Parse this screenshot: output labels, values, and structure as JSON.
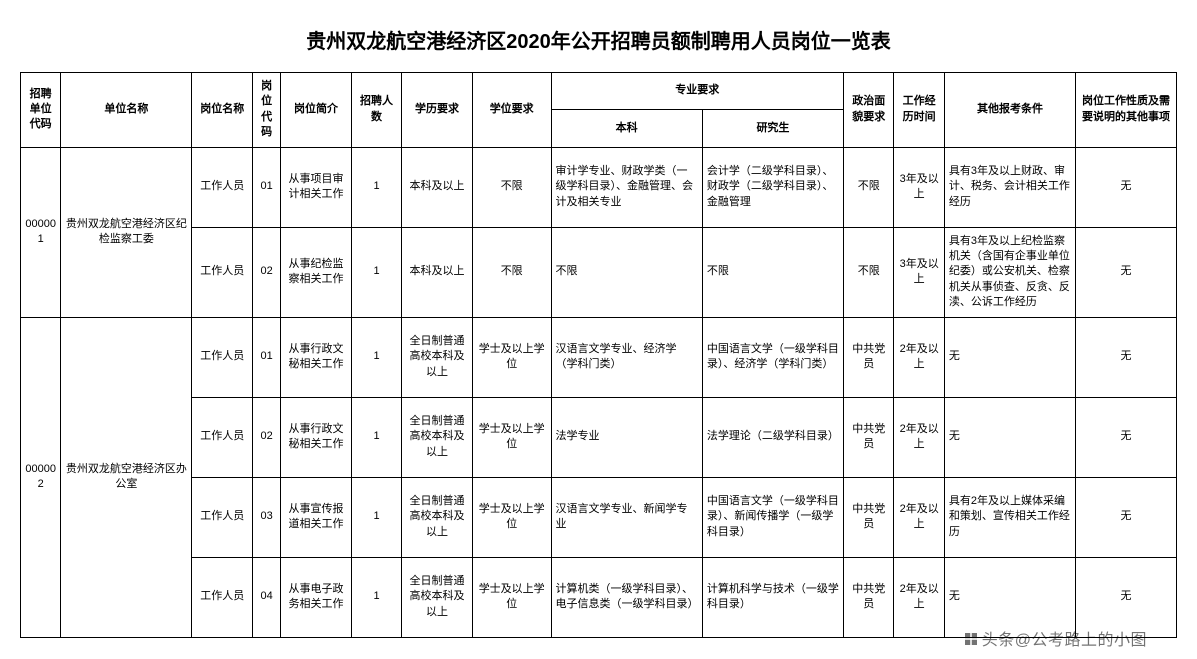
{
  "title": "贵州双龙航空港经济区2020年公开招聘员额制聘用人员岗位一览表",
  "columns": {
    "unit_code": "招聘单位代码",
    "unit_name": "单位名称",
    "post_name": "岗位名称",
    "post_code": "岗位代码",
    "post_desc": "岗位简介",
    "count": "招聘人数",
    "edu_req": "学历要求",
    "degree_req": "学位要求",
    "major_req": "专业要求",
    "major_bachelor": "本科",
    "major_master": "研究生",
    "political": "政治面貌要求",
    "work_exp": "工作经历时间",
    "other_req": "其他报考条件",
    "remark": "岗位工作性质及需要说明的其他事项"
  },
  "col_widths": {
    "unit_code": 40,
    "unit_name": 130,
    "post_name": 60,
    "post_code": 28,
    "post_desc": 70,
    "count": 50,
    "edu_req": 70,
    "degree_req": 78,
    "major_bachelor": 150,
    "major_master": 140,
    "political": 50,
    "work_exp": 50,
    "other_req": 130,
    "remark": 100
  },
  "units": [
    {
      "code": "000001",
      "name": "贵州双龙航空港经济区纪检监察工委",
      "posts": [
        {
          "post_name": "工作人员",
          "post_code": "01",
          "post_desc": "从事项目审计相关工作",
          "count": "1",
          "edu_req": "本科及以上",
          "degree_req": "不限",
          "major_bachelor": "审计学专业、财政学类（一级学科目录）、金融管理、会计及相关专业",
          "major_master": "会计学（二级学科目录）、财政学（二级学科目录）、金融管理",
          "political": "不限",
          "work_exp": "3年及以上",
          "other_req": "具有3年及以上财政、审计、税务、会计相关工作经历",
          "remark": "无"
        },
        {
          "post_name": "工作人员",
          "post_code": "02",
          "post_desc": "从事纪检监察相关工作",
          "count": "1",
          "edu_req": "本科及以上",
          "degree_req": "不限",
          "major_bachelor": "不限",
          "major_master": "不限",
          "political": "不限",
          "work_exp": "3年及以上",
          "other_req": "具有3年及以上纪检监察机关（含国有企事业单位纪委）或公安机关、检察机关从事侦查、反贪、反渎、公诉工作经历",
          "remark": "无"
        }
      ]
    },
    {
      "code": "000002",
      "name": "贵州双龙航空港经济区办公室",
      "posts": [
        {
          "post_name": "工作人员",
          "post_code": "01",
          "post_desc": "从事行政文秘相关工作",
          "count": "1",
          "edu_req": "全日制普通高校本科及以上",
          "degree_req": "学士及以上学位",
          "major_bachelor": "汉语言文学专业、经济学（学科门类）",
          "major_master": "中国语言文学（一级学科目录）、经济学（学科门类）",
          "political": "中共党员",
          "work_exp": "2年及以上",
          "other_req": "无",
          "remark": "无"
        },
        {
          "post_name": "工作人员",
          "post_code": "02",
          "post_desc": "从事行政文秘相关工作",
          "count": "1",
          "edu_req": "全日制普通高校本科及以上",
          "degree_req": "学士及以上学位",
          "major_bachelor": "法学专业",
          "major_master": "法学理论（二级学科目录）",
          "political": "中共党员",
          "work_exp": "2年及以上",
          "other_req": "无",
          "remark": "无"
        },
        {
          "post_name": "工作人员",
          "post_code": "03",
          "post_desc": "从事宣传报道相关工作",
          "count": "1",
          "edu_req": "全日制普通高校本科及以上",
          "degree_req": "学士及以上学位",
          "major_bachelor": "汉语言文学专业、新闻学专业",
          "major_master": "中国语言文学（一级学科目录）、新闻传播学（一级学科目录）",
          "political": "中共党员",
          "work_exp": "2年及以上",
          "other_req": "具有2年及以上媒体采编和策划、宣传相关工作经历",
          "remark": "无"
        },
        {
          "post_name": "工作人员",
          "post_code": "04",
          "post_desc": "从事电子政务相关工作",
          "count": "1",
          "edu_req": "全日制普通高校本科及以上",
          "degree_req": "学士及以上学位",
          "major_bachelor": "计算机类（一级学科目录）、电子信息类（一级学科目录）",
          "major_master": "计算机科学与技术（一级学科目录）",
          "political": "中共党员",
          "work_exp": "2年及以上",
          "other_req": "无",
          "remark": "无"
        }
      ]
    }
  ],
  "watermark": "头条@公考路上的小图"
}
